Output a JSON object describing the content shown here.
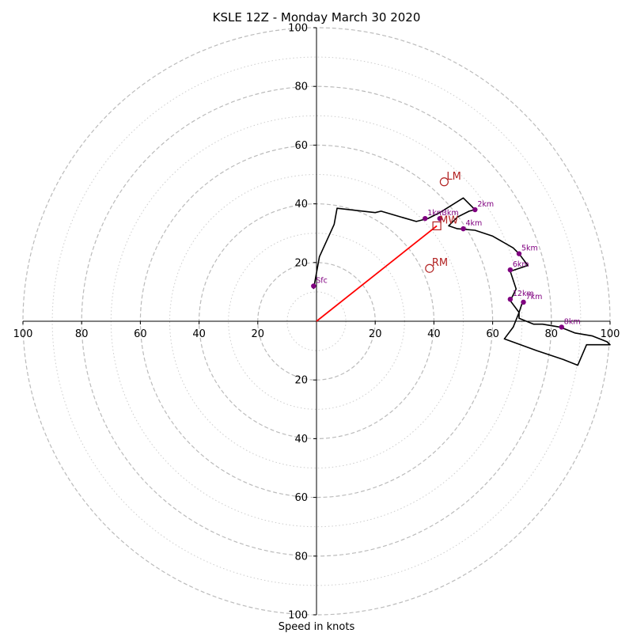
{
  "chart_data": {
    "type": "hodograph",
    "title": "KSLE 12Z - Monday March 30 2020",
    "xlabel": "Speed in knots",
    "max_speed": 100,
    "dashed_ring_speeds": [
      20,
      40,
      60,
      80,
      100
    ],
    "dotted_ring_speeds": [
      10,
      30,
      50,
      70,
      90
    ],
    "axis_ticks": [
      20,
      40,
      60,
      80,
      100
    ],
    "axis_tick_labels": {
      "left": [
        "20",
        "40",
        "60",
        "80",
        "100"
      ],
      "right": [
        "20",
        "40",
        "60",
        "80",
        "100"
      ],
      "up": [
        "20",
        "40",
        "60",
        "80",
        "100"
      ],
      "down": [
        "20",
        "40",
        "60",
        "80",
        "100"
      ]
    },
    "colors": {
      "trace": "#000000",
      "height_markers": "#800080",
      "storm_motion": "#b22222",
      "mean_wind_vector": "#ff0000",
      "dashed_ring": "#bbbbbb",
      "dotted_ring": "#cccccc"
    },
    "hodograph_trace": [
      [
        -1,
        11
      ],
      [
        1,
        22
      ],
      [
        6,
        33
      ],
      [
        7,
        38.5
      ],
      [
        20,
        37
      ],
      [
        22,
        37.5
      ],
      [
        34,
        34
      ],
      [
        38,
        35
      ],
      [
        40,
        36
      ],
      [
        42,
        37
      ],
      [
        50,
        42
      ],
      [
        54,
        38
      ],
      [
        52,
        37.5
      ],
      [
        48,
        35.5
      ],
      [
        45,
        32.5
      ],
      [
        48,
        31.5
      ],
      [
        54,
        31
      ],
      [
        60,
        29
      ],
      [
        67,
        25
      ],
      [
        69,
        23
      ],
      [
        72,
        19
      ],
      [
        66,
        17
      ],
      [
        68,
        11
      ],
      [
        66,
        7
      ],
      [
        69,
        3
      ],
      [
        69,
        1
      ],
      [
        74,
        -1
      ],
      [
        77,
        -1
      ],
      [
        83,
        -2
      ],
      [
        88,
        -4
      ],
      [
        94,
        -5
      ],
      [
        99,
        -7
      ],
      [
        100,
        -8
      ],
      [
        92,
        -8
      ],
      [
        89,
        -15
      ],
      [
        84,
        -13
      ],
      [
        75,
        -10
      ],
      [
        64,
        -6
      ],
      [
        67,
        -2
      ],
      [
        69,
        3
      ],
      [
        70,
        6
      ]
    ],
    "height_points": [
      {
        "label": "Sfc",
        "u": -1,
        "v": 12
      },
      {
        "label": "1km",
        "u": 37,
        "v": 35
      },
      {
        "label": "2km",
        "u": 54,
        "v": 38
      },
      {
        "label": "3km",
        "u": 42,
        "v": 35
      },
      {
        "label": "4km",
        "u": 50,
        "v": 31.5
      },
      {
        "label": "5km",
        "u": 69,
        "v": 23
      },
      {
        "label": "6km",
        "u": 66,
        "v": 17.5
      },
      {
        "label": "7km",
        "u": 70.5,
        "v": 6.5
      },
      {
        "label": "8km",
        "u": 83.5,
        "v": -2
      },
      {
        "label": "12km",
        "u": 66,
        "v": 7.5
      }
    ],
    "storm_motions": [
      {
        "label": "LM",
        "u": 43.5,
        "v": 47.5,
        "marker": "circle"
      },
      {
        "label": "RM",
        "u": 38.5,
        "v": 18,
        "marker": "circle"
      },
      {
        "label": "MW",
        "u": 41,
        "v": 32.5,
        "marker": "square"
      }
    ],
    "mean_wind_vector": {
      "u": 41,
      "v": 32.5
    }
  }
}
